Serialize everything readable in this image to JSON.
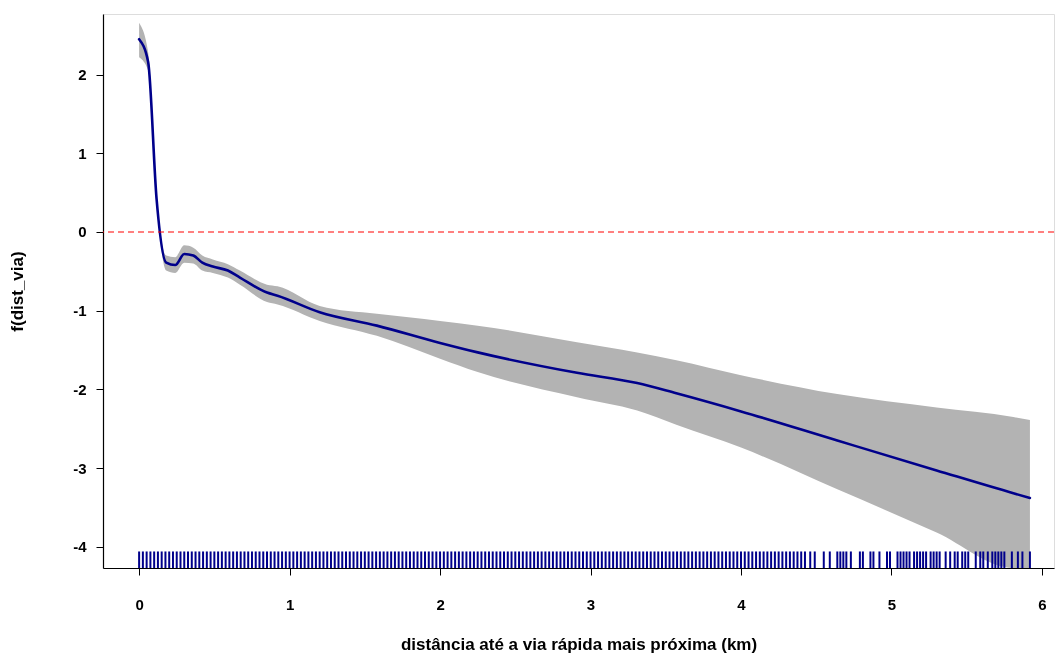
{
  "chart_data": {
    "type": "line",
    "xlabel": "distância até a via rápida mais próxima (km)",
    "ylabel": "f(dist_via)",
    "xlim": [
      -0.24,
      6.08
    ],
    "xticks": [
      0,
      1,
      2,
      3,
      4,
      5,
      6
    ],
    "ylim": [
      -4.27,
      2.77
    ],
    "yticks": [
      -4,
      -3,
      -2,
      -1,
      0,
      1,
      2
    ],
    "series": [
      {
        "color": "#00008b",
        "line_style": "solid",
        "x": [
          0,
          0.06,
          0.116,
          0.18,
          0.24,
          0.3,
          0.36,
          0.42,
          0.49,
          0.59,
          0.67,
          0.85,
          0.92,
          1.2,
          1.58,
          2,
          2.25,
          2.91,
          3.31,
          3.57,
          4,
          4.64,
          5.3,
          5.81,
          5.92
        ],
        "values": [
          2.45,
          2.16,
          0.42,
          -0.39,
          -0.42,
          -0.28,
          -0.3,
          -0.39,
          -0.44,
          -0.49,
          -0.58,
          -0.77,
          -0.81,
          -1.02,
          -1.19,
          -1.41,
          -1.53,
          -1.79,
          -1.92,
          -2.05,
          -2.28,
          -2.65,
          -3.03,
          -3.32,
          -3.38
        ],
        "lower": [
          2.22,
          2.05,
          0.38,
          -0.49,
          -0.52,
          -0.39,
          -0.4,
          -0.49,
          -0.52,
          -0.58,
          -0.67,
          -0.89,
          -0.92,
          -1.13,
          -1.32,
          -1.61,
          -1.78,
          -2.1,
          -2.27,
          -2.45,
          -2.74,
          -3.27,
          -3.82,
          -4.27,
          -4.27
        ],
        "upper": [
          2.66,
          2.28,
          0.46,
          -0.3,
          -0.32,
          -0.17,
          -0.2,
          -0.3,
          -0.35,
          -0.41,
          -0.49,
          -0.67,
          -0.69,
          -0.94,
          -1.04,
          -1.13,
          -1.19,
          -1.4,
          -1.53,
          -1.63,
          -1.82,
          -2.06,
          -2.23,
          -2.35,
          -2.39
        ]
      },
      {
        "type": "bar",
        "color": "#00008b",
        "x": [
          0,
          0.025,
          0.05,
          0.075,
          0.1,
          0.125,
          0.15,
          0.175,
          0.2,
          0.225,
          0.25,
          0.275,
          0.3,
          0.325,
          0.35,
          0.375,
          0.4,
          0.425,
          0.45,
          0.475,
          0.5,
          0.525,
          0.55,
          0.575,
          0.6,
          0.625,
          0.65,
          0.675,
          0.7,
          0.725,
          0.75,
          0.775,
          0.8,
          0.825,
          0.85,
          0.875,
          0.9,
          0.925,
          0.95,
          0.975,
          1,
          1.025,
          1.05,
          1.075,
          1.1,
          1.125,
          1.15,
          1.175,
          1.2,
          1.225,
          1.25,
          1.275,
          1.3,
          1.325,
          1.35,
          1.375,
          1.4,
          1.425,
          1.45,
          1.475,
          1.5,
          1.525,
          1.55,
          1.575,
          1.6,
          1.625,
          1.65,
          1.675,
          1.7,
          1.725,
          1.75,
          1.775,
          1.8,
          1.825,
          1.85,
          1.875,
          1.9,
          1.925,
          1.95,
          1.975,
          2,
          2.025,
          2.05,
          2.075,
          2.1,
          2.125,
          2.15,
          2.175,
          2.2,
          2.225,
          2.25,
          2.275,
          2.3,
          2.325,
          2.35,
          2.375,
          2.4,
          2.425,
          2.45,
          2.475,
          2.5,
          2.525,
          2.55,
          2.575,
          2.6,
          2.625,
          2.65,
          2.675,
          2.7,
          2.725,
          2.75,
          2.775,
          2.8,
          2.825,
          2.85,
          2.875,
          2.9,
          2.925,
          2.95,
          2.975,
          3,
          3.025,
          3.05,
          3.075,
          3.1,
          3.125,
          3.15,
          3.175,
          3.2,
          3.225,
          3.25,
          3.275,
          3.3,
          3.325,
          3.35,
          3.375,
          3.4,
          3.425,
          3.45,
          3.475,
          3.5,
          3.525,
          3.55,
          3.575,
          3.6,
          3.625,
          3.65,
          3.675,
          3.7,
          3.725,
          3.75,
          3.775,
          3.8,
          3.825,
          3.85,
          3.875,
          3.9,
          3.925,
          3.95,
          3.975,
          4,
          4.025,
          4.05,
          4.075,
          4.1,
          4.125,
          4.15,
          4.175,
          4.2,
          4.225,
          4.25,
          4.275,
          4.3,
          4.325,
          4.35,
          4.375,
          4.4,
          4.425,
          4.46,
          4.49,
          4.55,
          4.59,
          4.64,
          4.66,
          4.68,
          4.7,
          4.73,
          4.79,
          4.81,
          4.86,
          4.88,
          4.92,
          4.97,
          4.99,
          5.04,
          5.06,
          5.08,
          5.1,
          5.12,
          5.15,
          5.17,
          5.19,
          5.21,
          5.23,
          5.26,
          5.28,
          5.3,
          5.32,
          5.36,
          5.39,
          5.42,
          5.44,
          5.47,
          5.49,
          5.51,
          5.56,
          5.59,
          5.61,
          5.64,
          5.67,
          5.69,
          5.71,
          5.73,
          5.75,
          5.8,
          5.84,
          5.87,
          5.92
        ],
        "values": [
          0.21,
          0.21,
          0.21,
          0.21,
          0.21,
          0.21,
          0.21,
          0.21,
          0.21,
          0.21,
          0.21,
          0.21,
          0.21,
          0.21,
          0.21,
          0.21,
          0.21,
          0.21,
          0.21,
          0.21,
          0.21,
          0.21,
          0.21,
          0.21,
          0.21,
          0.21,
          0.21,
          0.21,
          0.21,
          0.21,
          0.21,
          0.21,
          0.21,
          0.21,
          0.21,
          0.21,
          0.21,
          0.21,
          0.21,
          0.21,
          0.21,
          0.21,
          0.21,
          0.21,
          0.21,
          0.21,
          0.21,
          0.21,
          0.21,
          0.21,
          0.21,
          0.21,
          0.21,
          0.21,
          0.21,
          0.21,
          0.21,
          0.21,
          0.21,
          0.21,
          0.21,
          0.21,
          0.21,
          0.21,
          0.21,
          0.21,
          0.21,
          0.21,
          0.21,
          0.21,
          0.21,
          0.21,
          0.21,
          0.21,
          0.21,
          0.21,
          0.21,
          0.21,
          0.21,
          0.21,
          0.21,
          0.21,
          0.21,
          0.21,
          0.21,
          0.21,
          0.21,
          0.21,
          0.21,
          0.21,
          0.21,
          0.21,
          0.21,
          0.21,
          0.21,
          0.21,
          0.21,
          0.21,
          0.21,
          0.21,
          0.21,
          0.21,
          0.21,
          0.21,
          0.21,
          0.21,
          0.21,
          0.21,
          0.21,
          0.21,
          0.21,
          0.21,
          0.21,
          0.21,
          0.21,
          0.21,
          0.21,
          0.21,
          0.21,
          0.21,
          0.21,
          0.21,
          0.21,
          0.21,
          0.21,
          0.21,
          0.21,
          0.21,
          0.21,
          0.21,
          0.21,
          0.21,
          0.21,
          0.21,
          0.21,
          0.21,
          0.21,
          0.21,
          0.21,
          0.21,
          0.21,
          0.21,
          0.21,
          0.21,
          0.21,
          0.21,
          0.21,
          0.21,
          0.21,
          0.21,
          0.21,
          0.21,
          0.21,
          0.21,
          0.21,
          0.21,
          0.21,
          0.21,
          0.21,
          0.21,
          0.21,
          0.21,
          0.21,
          0.21,
          0.21,
          0.21,
          0.21,
          0.21,
          0.21,
          0.21,
          0.21,
          0.21,
          0.21,
          0.21,
          0.21,
          0.21,
          0.21,
          0.21,
          0.21,
          0.21,
          0.21,
          0.21,
          0.21,
          0.21,
          0.21,
          0.21,
          0.21,
          0.21,
          0.21,
          0.21,
          0.21,
          0.21,
          0.21,
          0.21,
          0.21,
          0.21,
          0.21,
          0.21,
          0.21,
          0.21,
          0.21,
          0.21,
          0.21,
          0.21,
          0.21,
          0.21,
          0.21,
          0.21,
          0.21,
          0.21,
          0.21,
          0.21,
          0.21,
          0.21,
          0.21,
          0.21,
          0.21,
          0.21,
          0.21,
          0.21,
          0.21,
          0.21,
          0.21,
          0.21,
          0.21,
          0.21,
          0.21,
          0.21
        ],
        "base": [
          -4.27,
          -4.27,
          -4.27,
          -4.27,
          -4.27,
          -4.27,
          -4.27,
          -4.27,
          -4.27,
          -4.27,
          -4.27,
          -4.27,
          -4.27,
          -4.27,
          -4.27,
          -4.27,
          -4.27,
          -4.27,
          -4.27,
          -4.27,
          -4.27,
          -4.27,
          -4.27,
          -4.27,
          -4.27,
          -4.27,
          -4.27,
          -4.27,
          -4.27,
          -4.27,
          -4.27,
          -4.27,
          -4.27,
          -4.27,
          -4.27,
          -4.27,
          -4.27,
          -4.27,
          -4.27,
          -4.27,
          -4.27,
          -4.27,
          -4.27,
          -4.27,
          -4.27,
          -4.27,
          -4.27,
          -4.27,
          -4.27,
          -4.27,
          -4.27,
          -4.27,
          -4.27,
          -4.27,
          -4.27,
          -4.27,
          -4.27,
          -4.27,
          -4.27,
          -4.27,
          -4.27,
          -4.27,
          -4.27,
          -4.27,
          -4.27,
          -4.27,
          -4.27,
          -4.27,
          -4.27,
          -4.27,
          -4.27,
          -4.27,
          -4.27,
          -4.27,
          -4.27,
          -4.27,
          -4.27,
          -4.27,
          -4.27,
          -4.27,
          -4.27,
          -4.27,
          -4.27,
          -4.27,
          -4.27,
          -4.27,
          -4.27,
          -4.27,
          -4.27,
          -4.27,
          -4.27,
          -4.27,
          -4.27,
          -4.27,
          -4.27,
          -4.27,
          -4.27,
          -4.27,
          -4.27,
          -4.27,
          -4.27,
          -4.27,
          -4.27,
          -4.27,
          -4.27,
          -4.27,
          -4.27,
          -4.27,
          -4.27,
          -4.27,
          -4.27,
          -4.27,
          -4.27,
          -4.27,
          -4.27,
          -4.27,
          -4.27,
          -4.27,
          -4.27,
          -4.27,
          -4.27,
          -4.27,
          -4.27,
          -4.27,
          -4.27,
          -4.27,
          -4.27,
          -4.27,
          -4.27,
          -4.27,
          -4.27,
          -4.27,
          -4.27,
          -4.27,
          -4.27,
          -4.27,
          -4.27,
          -4.27,
          -4.27,
          -4.27,
          -4.27,
          -4.27,
          -4.27,
          -4.27,
          -4.27,
          -4.27,
          -4.27,
          -4.27,
          -4.27,
          -4.27,
          -4.27,
          -4.27,
          -4.27,
          -4.27,
          -4.27,
          -4.27,
          -4.27,
          -4.27,
          -4.27,
          -4.27,
          -4.27,
          -4.27,
          -4.27,
          -4.27,
          -4.27,
          -4.27,
          -4.27,
          -4.27,
          -4.27,
          -4.27,
          -4.27,
          -4.27,
          -4.27,
          -4.27,
          -4.27,
          -4.27,
          -4.27,
          -4.27,
          -4.27,
          -4.27,
          -4.27,
          -4.27,
          -4.27,
          -4.27,
          -4.27,
          -4.27,
          -4.27,
          -4.27,
          -4.27,
          -4.27,
          -4.27,
          -4.27,
          -4.27,
          -4.27,
          -4.27,
          -4.27,
          -4.27,
          -4.27,
          -4.27,
          -4.27,
          -4.27,
          -4.27,
          -4.27,
          -4.27,
          -4.27,
          -4.27,
          -4.27,
          -4.27,
          -4.27,
          -4.27,
          -4.27,
          -4.27,
          -4.27,
          -4.27,
          -4.27,
          -4.27,
          -4.27,
          -4.27,
          -4.27,
          -4.27,
          -4.27,
          -4.27,
          -4.27,
          -4.27,
          -4.27,
          -4.27,
          -4.27,
          -4.27
        ]
      }
    ],
    "ref_lines": [
      {
        "axis": "y",
        "value": 0,
        "color": "#ff0000",
        "line_style": "dashed"
      }
    ]
  }
}
